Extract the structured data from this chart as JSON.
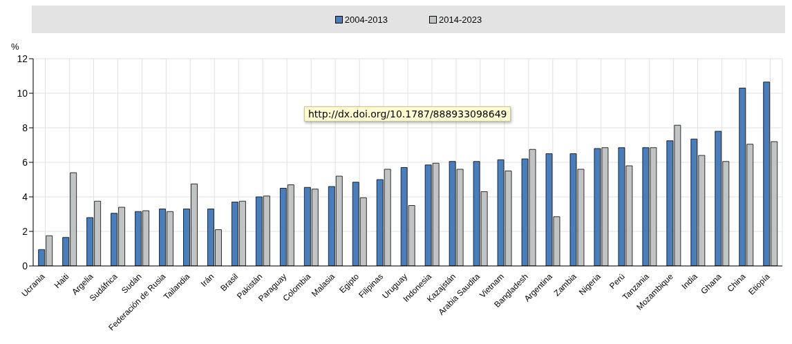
{
  "chart_data": {
    "type": "bar",
    "ylabel": "%",
    "categories": [
      "Ucrania",
      "Haiti",
      "Argelia",
      "Sudáfrica",
      "Sudán",
      "Federación de Rusia",
      "Tailandia",
      "Irán",
      "Brasil",
      "Pakistán",
      "Paraguay",
      "Colombia",
      "Malasia",
      "Egipto",
      "Filipinas",
      "Uruguay",
      "Indonesia",
      "Kazajstán",
      "Arabia Saudita",
      "Vietnam",
      "Bangladesh",
      "Argentina",
      "Zambia",
      "Nigeria",
      "Perú",
      "Tanzania",
      "Mozambique",
      "India",
      "Ghana",
      "China",
      "Etiopía"
    ],
    "series": [
      {
        "name": "2004-2013",
        "color": "#4a7ebb",
        "values": [
          0.95,
          1.65,
          2.8,
          3.05,
          3.15,
          3.3,
          3.3,
          3.3,
          3.7,
          4.0,
          4.5,
          4.55,
          4.6,
          4.85,
          5.0,
          5.7,
          5.85,
          6.05,
          6.05,
          6.15,
          6.2,
          6.5,
          6.5,
          6.8,
          6.85,
          6.85,
          7.25,
          7.35,
          7.8,
          10.3,
          10.65
        ]
      },
      {
        "name": "2014-2023",
        "color": "#c0c4c4",
        "values": [
          1.75,
          5.4,
          3.75,
          3.4,
          3.2,
          3.15,
          4.75,
          2.1,
          3.75,
          4.05,
          4.7,
          4.45,
          5.2,
          3.95,
          5.6,
          3.5,
          5.95,
          5.6,
          4.3,
          5.5,
          6.75,
          2.85,
          5.6,
          6.85,
          5.8,
          6.85,
          8.15,
          6.4,
          6.05,
          7.05,
          7.2
        ]
      }
    ],
    "ylim": [
      0,
      12
    ],
    "yticks": [
      0,
      2,
      4,
      6,
      8,
      10,
      12
    ],
    "grid": true,
    "legend": "top",
    "annotations": [
      "http://dx.doi.org/10.1787/888933098649"
    ]
  }
}
